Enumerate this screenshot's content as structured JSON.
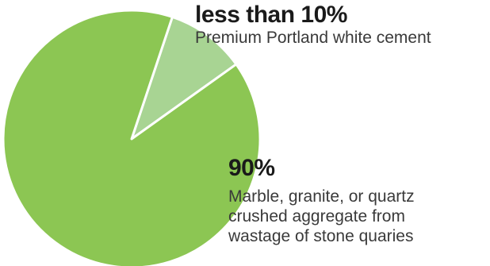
{
  "chart_data": {
    "type": "pie",
    "slices": [
      {
        "value_label": "less than 10%",
        "value": 10,
        "description": [
          "Premium Portland white cement"
        ],
        "color": "#a8d493"
      },
      {
        "value_label": "90%",
        "value": 90,
        "description": [
          "Marble, granite, or quartz",
          "crushed aggregate from",
          "wastage of stone quaries"
        ],
        "color": "#8cc653"
      }
    ]
  }
}
